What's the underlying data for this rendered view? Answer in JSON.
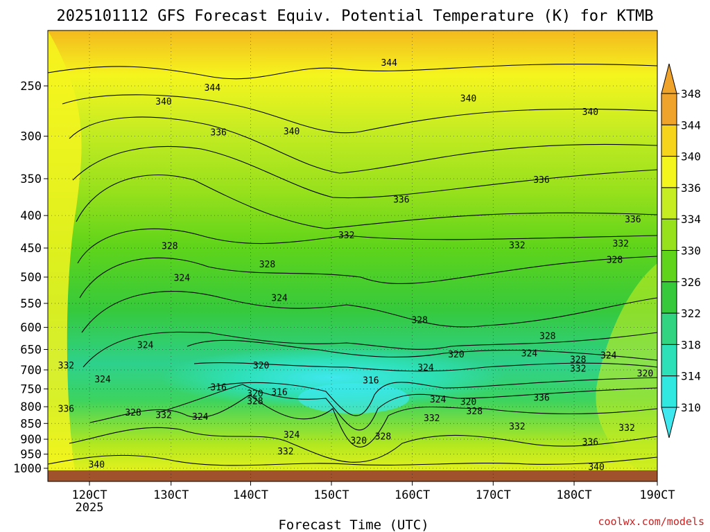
{
  "chart_data": {
    "type": "heatmap",
    "title": "2025101112 GFS Forecast Equiv. Potential Temperature (K) for KTMB",
    "xlabel": "Forecast Time (UTC)",
    "ylabel": "",
    "x_ticks": [
      "120CT",
      "130CT",
      "140CT",
      "150CT",
      "160CT",
      "170CT",
      "180CT",
      "190CT"
    ],
    "x_year_label": "2025",
    "y_ticks": [
      250,
      300,
      350,
      400,
      450,
      500,
      550,
      600,
      650,
      700,
      750,
      800,
      850,
      900,
      950,
      1000
    ],
    "ylim": [
      200,
      1013
    ],
    "colorbar_ticks": [
      348,
      344,
      340,
      336,
      334,
      330,
      326,
      322,
      318,
      314,
      310
    ],
    "colorbar_colors": [
      "#f0a32a",
      "#f7d41c",
      "#f5f51e",
      "#c6ec22",
      "#96e01c",
      "#5fd41a",
      "#36c93c",
      "#30d481",
      "#2ee0b8",
      "#30e8e0",
      "#3fe8ee"
    ],
    "contour_labels": [
      {
        "text": "344",
        "x": 0.56,
        "p": 230
      },
      {
        "text": "344",
        "x": 0.27,
        "p": 252
      },
      {
        "text": "340",
        "x": 0.19,
        "p": 265
      },
      {
        "text": "340",
        "x": 0.69,
        "p": 262
      },
      {
        "text": "340",
        "x": 0.89,
        "p": 275
      },
      {
        "text": "336",
        "x": 0.28,
        "p": 296
      },
      {
        "text": "340",
        "x": 0.4,
        "p": 295
      },
      {
        "text": "336",
        "x": 0.81,
        "p": 352
      },
      {
        "text": "336",
        "x": 0.58,
        "p": 378
      },
      {
        "text": "336",
        "x": 0.96,
        "p": 406
      },
      {
        "text": "332",
        "x": 0.49,
        "p": 430
      },
      {
        "text": "328",
        "x": 0.2,
        "p": 447
      },
      {
        "text": "332",
        "x": 0.77,
        "p": 446
      },
      {
        "text": "332",
        "x": 0.94,
        "p": 443
      },
      {
        "text": "328",
        "x": 0.36,
        "p": 478
      },
      {
        "text": "328",
        "x": 0.93,
        "p": 470
      },
      {
        "text": "324",
        "x": 0.22,
        "p": 502
      },
      {
        "text": "324",
        "x": 0.38,
        "p": 540
      },
      {
        "text": "328",
        "x": 0.61,
        "p": 585
      },
      {
        "text": "328",
        "x": 0.82,
        "p": 620
      },
      {
        "text": "324",
        "x": 0.16,
        "p": 640
      },
      {
        "text": "320",
        "x": 0.35,
        "p": 690
      },
      {
        "text": "320",
        "x": 0.67,
        "p": 662
      },
      {
        "text": "324",
        "x": 0.79,
        "p": 660
      },
      {
        "text": "328",
        "x": 0.87,
        "p": 675
      },
      {
        "text": "324",
        "x": 0.92,
        "p": 665
      },
      {
        "text": "324",
        "x": 0.62,
        "p": 695
      },
      {
        "text": "332",
        "x": 0.87,
        "p": 697
      },
      {
        "text": "320",
        "x": 0.98,
        "p": 710
      },
      {
        "text": "332",
        "x": 0.03,
        "p": 690
      },
      {
        "text": "324",
        "x": 0.09,
        "p": 725
      },
      {
        "text": "316",
        "x": 0.53,
        "p": 728
      },
      {
        "text": "316",
        "x": 0.28,
        "p": 746
      },
      {
        "text": "320",
        "x": 0.34,
        "p": 763
      },
      {
        "text": "316",
        "x": 0.38,
        "p": 760
      },
      {
        "text": "336",
        "x": 0.81,
        "p": 775
      },
      {
        "text": "328",
        "x": 0.34,
        "p": 785
      },
      {
        "text": "324",
        "x": 0.64,
        "p": 780
      },
      {
        "text": "320",
        "x": 0.69,
        "p": 787
      },
      {
        "text": "336",
        "x": 0.03,
        "p": 807
      },
      {
        "text": "328",
        "x": 0.14,
        "p": 818
      },
      {
        "text": "332",
        "x": 0.19,
        "p": 825
      },
      {
        "text": "324",
        "x": 0.25,
        "p": 830
      },
      {
        "text": "328",
        "x": 0.7,
        "p": 814
      },
      {
        "text": "332",
        "x": 0.63,
        "p": 835
      },
      {
        "text": "332",
        "x": 0.77,
        "p": 860
      },
      {
        "text": "332",
        "x": 0.95,
        "p": 864
      },
      {
        "text": "324",
        "x": 0.4,
        "p": 886
      },
      {
        "text": "328",
        "x": 0.55,
        "p": 892
      },
      {
        "text": "320",
        "x": 0.51,
        "p": 905
      },
      {
        "text": "336",
        "x": 0.89,
        "p": 910
      },
      {
        "text": "332",
        "x": 0.39,
        "p": 941
      },
      {
        "text": "340",
        "x": 0.08,
        "p": 987
      },
      {
        "text": "340",
        "x": 0.9,
        "p": 996
      }
    ]
  },
  "watermark": "coolwx.com/models"
}
